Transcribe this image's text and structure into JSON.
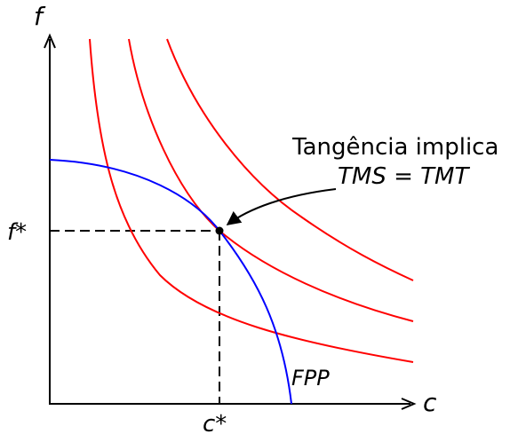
{
  "axes": {
    "y_label": "f",
    "x_label": "c"
  },
  "equilibrium": {
    "y_tick_label": "f*",
    "x_tick_label": "c*"
  },
  "annotation": {
    "line1": "Tangência implica",
    "line2": "TMS = TMT"
  },
  "curves": {
    "ppf_label": "FPP",
    "ppf_color": "#0000ff",
    "indifference_color": "#ff0000",
    "indifference_count": 3
  },
  "colors": {
    "axes": "#000000",
    "guides": "#000000",
    "point": "#000000"
  }
}
